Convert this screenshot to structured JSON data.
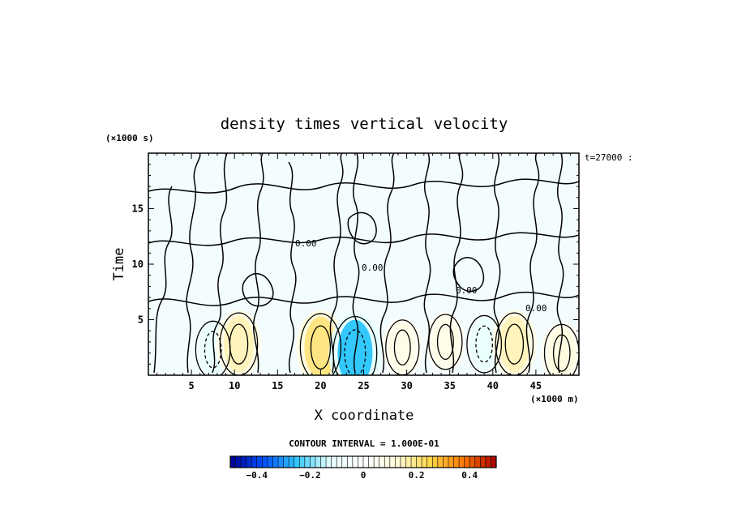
{
  "chart_data": {
    "type": "heatmap",
    "title": "density times vertical velocity",
    "xlabel": "X coordinate",
    "ylabel": "Time",
    "x_unit": "(×1000 m)",
    "y_unit": "(×1000 s)",
    "xlim": [
      0,
      50
    ],
    "ylim": [
      0,
      20
    ],
    "x_ticks": [
      5,
      10,
      15,
      20,
      25,
      30,
      35,
      40,
      45
    ],
    "y_ticks": [
      5,
      10,
      15
    ],
    "x_tick_labels": [
      "5",
      "10",
      "15",
      "20",
      "25",
      "30",
      "35",
      "40",
      "45"
    ],
    "y_tick_labels": [
      "5",
      "10",
      "15"
    ],
    "time_annotation": "t=27000 :",
    "contour_interval_label": "CONTOUR INTERVAL = 1.000E-01",
    "contour_interval": 0.1,
    "contour_label": "0.00",
    "colorbar": {
      "range": [
        -0.5,
        0.5
      ],
      "n_bins": 50,
      "ticks": [
        -0.4,
        -0.2,
        0,
        0.2,
        0.4
      ],
      "tick_labels": [
        "−0.4",
        "−0.2",
        "0",
        "0.2",
        "0.4"
      ],
      "colors": [
        "#00008f",
        "#0050ff",
        "#33c8ff",
        "#e6ffff",
        "#ffffff",
        "#fffbd9",
        "#ffd84a",
        "#ff7a00",
        "#a80000"
      ]
    },
    "features": [
      {
        "x": 7.5,
        "y": 2.3,
        "value": -0.1,
        "sign": "negative"
      },
      {
        "x": 10.5,
        "y": 2.8,
        "value": 0.15,
        "sign": "positive"
      },
      {
        "x": 20.0,
        "y": 2.5,
        "value": 0.2,
        "sign": "positive"
      },
      {
        "x": 24.0,
        "y": 2.0,
        "value": -0.25,
        "sign": "negative"
      },
      {
        "x": 29.5,
        "y": 2.5,
        "value": 0.08,
        "sign": "positive"
      },
      {
        "x": 34.5,
        "y": 3.0,
        "value": 0.08,
        "sign": "positive"
      },
      {
        "x": 39.0,
        "y": 2.8,
        "value": -0.1,
        "sign": "negative"
      },
      {
        "x": 42.5,
        "y": 2.8,
        "value": 0.15,
        "sign": "positive"
      },
      {
        "x": 48.0,
        "y": 2.0,
        "value": 0.1,
        "sign": "positive"
      }
    ]
  }
}
